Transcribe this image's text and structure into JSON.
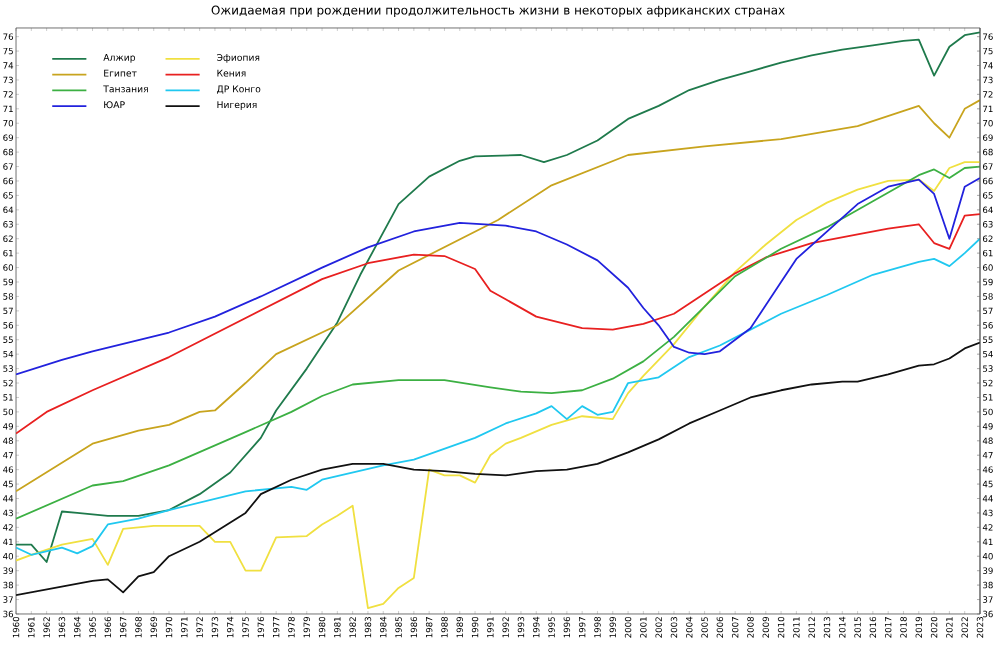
{
  "chart_data": {
    "type": "line",
    "title": "Ожидаемая при рождении продолжительность жизни в некоторых африканских странах",
    "legend": "top left",
    "xlim": [
      1960,
      2023
    ],
    "ylim": [
      36,
      76.6
    ],
    "y2lim": [
      36,
      76.6
    ],
    "xticks": [
      1960,
      1961,
      1962,
      1963,
      1964,
      1965,
      1966,
      1967,
      1968,
      1969,
      1970,
      1971,
      1972,
      1973,
      1974,
      1975,
      1976,
      1977,
      1978,
      1979,
      1980,
      1981,
      1982,
      1983,
      1984,
      1985,
      1986,
      1987,
      1988,
      1989,
      1990,
      1991,
      1992,
      1993,
      1994,
      1995,
      1996,
      1997,
      1998,
      1999,
      2000,
      2001,
      2002,
      2003,
      2004,
      2005,
      2006,
      2007,
      2008,
      2009,
      2010,
      2011,
      2012,
      2013,
      2014,
      2015,
      2016,
      2017,
      2018,
      2019,
      2020,
      2021,
      2022,
      2023
    ],
    "yticks": [
      36,
      37,
      38,
      39,
      40,
      41,
      42,
      43,
      44,
      45,
      46,
      47,
      48,
      49,
      50,
      51,
      52,
      53,
      54,
      55,
      56,
      57,
      58,
      59,
      60,
      61,
      62,
      63,
      64,
      65,
      66,
      67,
      68,
      69,
      70,
      71,
      72,
      73,
      74,
      75,
      76
    ],
    "y2ticks": [
      36,
      37,
      38,
      39,
      40,
      41,
      42,
      43,
      44,
      45,
      46,
      47,
      48,
      49,
      50,
      51,
      52,
      53,
      54,
      55,
      56,
      57,
      58,
      59,
      60,
      61,
      62,
      63,
      64,
      65,
      66,
      67,
      68,
      69,
      70,
      71,
      72,
      73,
      74,
      75,
      76
    ],
    "series": [
      {
        "name": "Алжир",
        "color": "#1f7a4c",
        "x": [
          1960,
          1961,
          1962,
          1963,
          1964,
          1966,
          1968,
          1970,
          1972,
          1974,
          1976,
          1977,
          1979,
          1981,
          1982.5,
          1985,
          1987,
          1989,
          1990,
          1993,
          1994.5,
          1996,
          1998,
          2000,
          2002,
          2004,
          2006,
          2008,
          2010,
          2012,
          2014,
          2016,
          2018,
          2019,
          2020,
          2021,
          2022,
          2023
        ],
        "values": [
          40.8,
          40.8,
          39.6,
          43.1,
          43.0,
          42.8,
          42.8,
          43.2,
          44.3,
          45.8,
          48.2,
          50.1,
          53.0,
          56.2,
          59.5,
          64.4,
          66.3,
          67.4,
          67.7,
          67.8,
          67.3,
          67.8,
          68.8,
          70.3,
          71.2,
          72.3,
          73.0,
          73.6,
          74.2,
          74.7,
          75.1,
          75.4,
          75.7,
          75.8,
          73.3,
          75.3,
          76.1,
          76.3
        ]
      },
      {
        "name": "Эфиопия",
        "color": "#f0e040",
        "x": [
          1960,
          1961,
          1963,
          1965,
          1966,
          1967,
          1969,
          1972,
          1973,
          1974,
          1975,
          1976,
          1977,
          1979,
          1980,
          1981,
          1982,
          1983,
          1984,
          1985,
          1986,
          1987,
          1988,
          1989,
          1990,
          1991,
          1992,
          1993,
          1995,
          1997,
          1999,
          2000,
          2001,
          2003,
          2005,
          2007,
          2009,
          2011,
          2013,
          2015,
          2017,
          2019,
          2020,
          2021,
          2022,
          2023
        ],
        "values": [
          39.7,
          40.1,
          40.8,
          41.2,
          39.4,
          41.9,
          42.1,
          42.1,
          41.0,
          41.0,
          39.0,
          39.0,
          41.3,
          41.4,
          42.2,
          42.8,
          43.5,
          36.4,
          36.7,
          37.8,
          38.5,
          46.0,
          45.6,
          45.6,
          45.1,
          47.0,
          47.8,
          48.2,
          49.1,
          49.7,
          49.5,
          51.3,
          52.5,
          54.7,
          57.3,
          59.7,
          61.6,
          63.3,
          64.5,
          65.4,
          66.0,
          66.1,
          65.3,
          66.9,
          67.3,
          67.3
        ]
      },
      {
        "name": "Египет",
        "color": "#c8a41e",
        "x": [
          1960,
          1965,
          1968,
          1970,
          1972,
          1973,
          1975,
          1977,
          1981,
          1985,
          1991.5,
          1995,
          2000,
          2005,
          2010,
          2015,
          2019,
          2020,
          2021,
          2022,
          2023
        ],
        "values": [
          44.5,
          47.8,
          48.7,
          49.1,
          50.0,
          50.1,
          52.0,
          54.0,
          56.0,
          59.8,
          63.3,
          65.7,
          67.8,
          68.4,
          68.9,
          69.8,
          71.2,
          70.0,
          69.0,
          71.0,
          71.6
        ]
      },
      {
        "name": "Кения",
        "color": "#e82020",
        "x": [
          1960,
          1962,
          1965,
          1970,
          1975,
          1980,
          1983,
          1986,
          1988,
          1990,
          1991,
          1992,
          1994,
          1997,
          1999,
          2001,
          2003,
          2005,
          2007,
          2009,
          2012,
          2015,
          2017,
          2019,
          2020,
          2021,
          2022,
          2023
        ],
        "values": [
          48.5,
          50.0,
          51.5,
          53.8,
          56.5,
          59.2,
          60.3,
          60.9,
          60.8,
          59.9,
          58.4,
          57.8,
          56.6,
          55.8,
          55.7,
          56.1,
          56.8,
          58.2,
          59.6,
          60.7,
          61.7,
          62.3,
          62.7,
          63.0,
          61.7,
          61.3,
          63.6,
          63.7
        ]
      },
      {
        "name": "Танзания",
        "color": "#3cb043",
        "x": [
          1960,
          1965,
          1967,
          1970,
          1975,
          1978,
          1980,
          1982,
          1985,
          1988,
          1991,
          1993,
          1995,
          1997,
          1999,
          2001,
          2003,
          2005,
          2007,
          2010,
          2013,
          2016,
          2019,
          2020,
          2021,
          2022,
          2023
        ],
        "values": [
          42.6,
          44.9,
          45.2,
          46.3,
          48.6,
          50.0,
          51.1,
          51.9,
          52.2,
          52.2,
          51.7,
          51.4,
          51.3,
          51.5,
          52.3,
          53.5,
          55.2,
          57.3,
          59.4,
          61.3,
          62.8,
          64.6,
          66.4,
          66.8,
          66.2,
          66.9,
          67.0
        ]
      },
      {
        "name": "ДР Конго",
        "color": "#20c8f0",
        "x": [
          1960,
          1961,
          1963,
          1964,
          1965,
          1966,
          1968,
          1970,
          1975,
          1978,
          1979,
          1980,
          1984,
          1986,
          1990,
          1992,
          1994,
          1995,
          1996,
          1997,
          1998,
          1999,
          2000,
          2002,
          2004,
          2006,
          2008,
          2010,
          2013,
          2016,
          2019,
          2020,
          2021,
          2022,
          2023
        ],
        "values": [
          40.6,
          40.1,
          40.6,
          40.2,
          40.7,
          42.2,
          42.6,
          43.2,
          44.5,
          44.8,
          44.6,
          45.3,
          46.3,
          46.7,
          48.2,
          49.2,
          49.9,
          50.4,
          49.5,
          50.4,
          49.8,
          50.0,
          52.0,
          52.4,
          53.8,
          54.6,
          55.7,
          56.8,
          58.1,
          59.5,
          60.4,
          60.6,
          60.1,
          61.0,
          62.0
        ]
      },
      {
        "name": "ЮАР",
        "color": "#2222dd",
        "x": [
          1960,
          1963,
          1965,
          1970,
          1973,
          1976,
          1980,
          1983,
          1986,
          1989,
          1992,
          1994,
          1996,
          1998,
          2000,
          2001,
          2002,
          2003,
          2004,
          2005,
          2006,
          2008,
          2010,
          2011,
          2013,
          2015,
          2017,
          2019,
          2020,
          2021,
          2022,
          2023
        ],
        "values": [
          52.6,
          53.6,
          54.2,
          55.5,
          56.6,
          58.0,
          60.0,
          61.4,
          62.5,
          63.1,
          62.9,
          62.5,
          61.6,
          60.5,
          58.6,
          57.2,
          56.0,
          54.5,
          54.1,
          54.0,
          54.2,
          55.8,
          59.0,
          60.6,
          62.5,
          64.4,
          65.6,
          66.1,
          65.1,
          62.0,
          65.6,
          66.2
        ]
      },
      {
        "name": "Нигерия",
        "color": "#111111",
        "x": [
          1960,
          1965,
          1966,
          1967,
          1968,
          1969,
          1970,
          1972,
          1975,
          1976,
          1978,
          1980,
          1982,
          1984,
          1986,
          1988,
          1990,
          1992,
          1994,
          1996,
          1998,
          2000,
          2002,
          2004,
          2006,
          2008,
          2010,
          2012,
          2014,
          2015,
          2017,
          2019,
          2020,
          2021,
          2022,
          2023
        ],
        "values": [
          37.3,
          38.3,
          38.4,
          37.5,
          38.6,
          38.9,
          40.0,
          41.0,
          43.0,
          44.3,
          45.3,
          46.0,
          46.4,
          46.4,
          46.0,
          45.9,
          45.7,
          45.6,
          45.9,
          46.0,
          46.4,
          47.2,
          48.1,
          49.2,
          50.1,
          51.0,
          51.5,
          51.9,
          52.1,
          52.1,
          52.6,
          53.2,
          53.3,
          53.7,
          54.4,
          54.8
        ]
      }
    ]
  }
}
